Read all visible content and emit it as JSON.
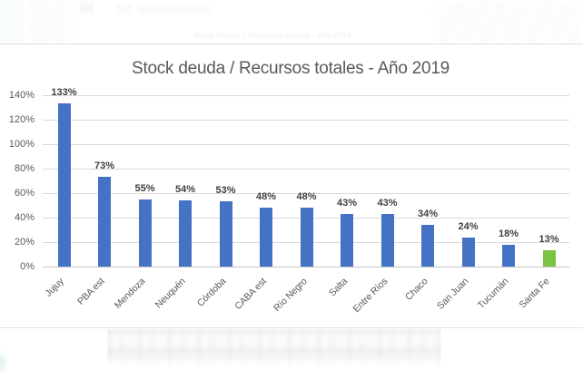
{
  "page": {
    "background": "#ffffff",
    "faded_caption": "Stock Deuda y Recursos totales - Año 2019"
  },
  "chart_data": {
    "type": "bar",
    "title": "Stock deuda / Recursos totales - Año 2019",
    "xlabel": "",
    "ylabel": "",
    "unit": "%",
    "categories": [
      "Jujuy",
      "PBA est",
      "Mendoza",
      "Neuquén",
      "Córdoba",
      "CABA est",
      "Río Negro",
      "Salta",
      "Entre Ríos",
      "Chaco",
      "San Juan",
      "Tucumán",
      "Santa Fe"
    ],
    "values": [
      133,
      73,
      55,
      54,
      53,
      48,
      48,
      43,
      43,
      34,
      24,
      18,
      13
    ],
    "data_labels": [
      "133%",
      "73%",
      "55%",
      "54%",
      "53%",
      "48%",
      "48%",
      "43%",
      "43%",
      "34%",
      "24%",
      "18%",
      "13%"
    ],
    "ylim": [
      0,
      140
    ],
    "ytick_step": 20,
    "ytick_labels": [
      "0%",
      "20%",
      "40%",
      "60%",
      "80%",
      "100%",
      "120%",
      "140%"
    ],
    "grid": true,
    "legend": false,
    "colors": {
      "bar_default": "#4472C4",
      "bar_highlight": "#7CC342",
      "highlight_category": "Santa Fe",
      "title_text": "#595959",
      "axis_text": "#595959",
      "data_label_text": "#3F3F3F",
      "gridline": "#D9D9D9",
      "axis_line": "#C3C3C3"
    }
  }
}
